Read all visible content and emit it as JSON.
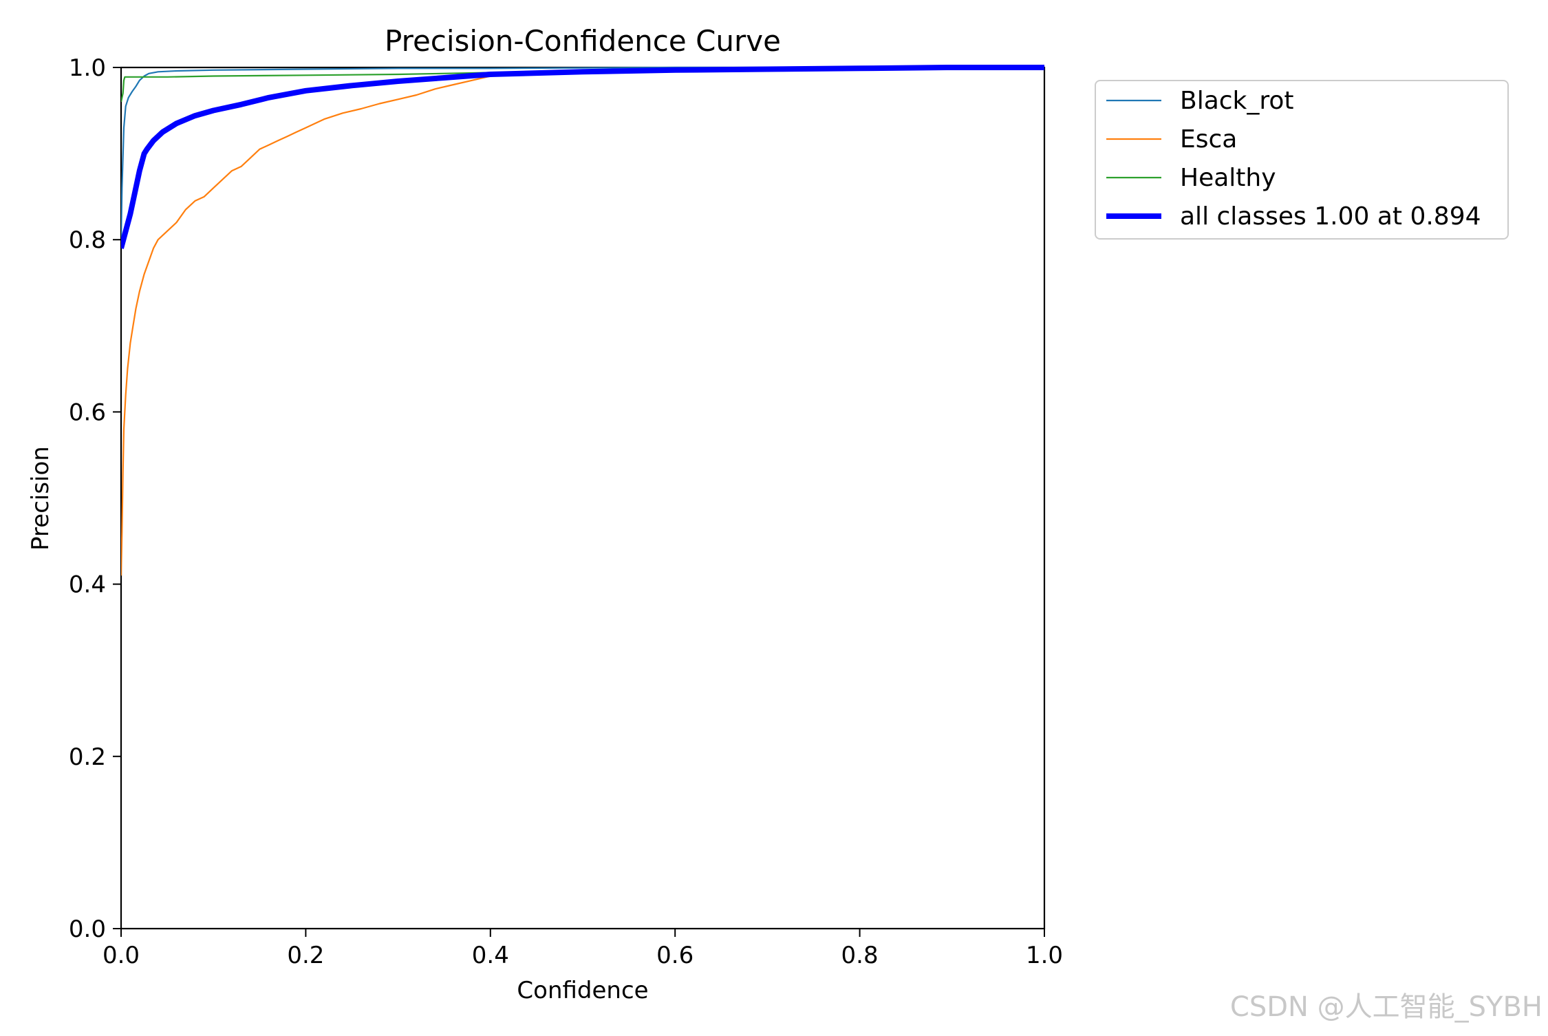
{
  "watermark": "CSDN @人工智能_SYBH",
  "chart_data": {
    "type": "line",
    "title": "Precision-Confidence Curve",
    "xlabel": "Confidence",
    "ylabel": "Precision",
    "xlim": [
      0.0,
      1.0
    ],
    "ylim": [
      0.0,
      1.0
    ],
    "grid": false,
    "legend_position": "outside-top-right",
    "xticks": [
      "0.0",
      "0.2",
      "0.4",
      "0.6",
      "0.8",
      "1.0"
    ],
    "yticks": [
      "0.0",
      "0.2",
      "0.4",
      "0.6",
      "0.8",
      "1.0"
    ],
    "xtick_values": [
      0.0,
      0.2,
      0.4,
      0.6,
      0.8,
      1.0
    ],
    "ytick_values": [
      0.0,
      0.2,
      0.4,
      0.6,
      0.8,
      1.0
    ],
    "series": [
      {
        "name": "Black_rot",
        "color": "#1f77b4",
        "bold": false,
        "x": [
          0.0,
          0.001,
          0.003,
          0.005,
          0.008,
          0.012,
          0.016,
          0.02,
          0.025,
          0.03,
          0.04,
          0.06,
          0.1,
          0.2,
          0.3,
          0.4,
          0.6,
          0.8,
          1.0
        ],
        "y": [
          0.8,
          0.86,
          0.93,
          0.955,
          0.965,
          0.972,
          0.978,
          0.985,
          0.99,
          0.993,
          0.995,
          0.996,
          0.997,
          0.998,
          0.999,
          0.999,
          1.0,
          1.0,
          1.0
        ]
      },
      {
        "name": "Esca",
        "color": "#ff7f0e",
        "bold": false,
        "x": [
          0.0,
          0.001,
          0.002,
          0.003,
          0.005,
          0.007,
          0.01,
          0.013,
          0.016,
          0.02,
          0.025,
          0.03,
          0.035,
          0.04,
          0.05,
          0.06,
          0.07,
          0.08,
          0.09,
          0.1,
          0.11,
          0.12,
          0.13,
          0.14,
          0.15,
          0.16,
          0.17,
          0.18,
          0.19,
          0.2,
          0.22,
          0.24,
          0.26,
          0.28,
          0.3,
          0.32,
          0.34,
          0.36,
          0.38,
          0.4,
          0.45,
          0.5,
          0.6,
          0.7,
          0.78,
          0.8,
          1.0
        ],
        "y": [
          0.41,
          0.46,
          0.53,
          0.58,
          0.62,
          0.65,
          0.68,
          0.7,
          0.72,
          0.74,
          0.76,
          0.775,
          0.79,
          0.8,
          0.81,
          0.82,
          0.835,
          0.845,
          0.85,
          0.86,
          0.87,
          0.88,
          0.885,
          0.895,
          0.905,
          0.91,
          0.915,
          0.92,
          0.925,
          0.93,
          0.94,
          0.947,
          0.952,
          0.958,
          0.963,
          0.968,
          0.975,
          0.98,
          0.985,
          0.99,
          0.993,
          0.995,
          0.997,
          0.998,
          0.998,
          1.0,
          1.0
        ]
      },
      {
        "name": "Healthy",
        "color": "#2ca02c",
        "bold": false,
        "x": [
          0.0,
          0.002,
          0.003,
          0.004,
          0.01,
          0.05,
          0.1,
          0.2,
          0.3,
          0.4,
          0.5,
          0.6,
          0.8,
          1.0
        ],
        "y": [
          0.96,
          0.97,
          0.985,
          0.989,
          0.989,
          0.989,
          0.99,
          0.991,
          0.992,
          0.994,
          0.996,
          0.998,
          1.0,
          1.0
        ]
      },
      {
        "name": "all classes 1.00 at 0.894",
        "color": "#0000ff",
        "bold": true,
        "x": [
          0.0,
          0.005,
          0.01,
          0.015,
          0.02,
          0.025,
          0.028,
          0.035,
          0.045,
          0.06,
          0.08,
          0.1,
          0.13,
          0.16,
          0.2,
          0.25,
          0.3,
          0.35,
          0.4,
          0.5,
          0.6,
          0.7,
          0.8,
          0.894,
          1.0
        ],
        "y": [
          0.79,
          0.81,
          0.83,
          0.855,
          0.88,
          0.9,
          0.905,
          0.915,
          0.925,
          0.935,
          0.944,
          0.95,
          0.957,
          0.965,
          0.973,
          0.979,
          0.984,
          0.988,
          0.992,
          0.995,
          0.997,
          0.998,
          0.999,
          1.0,
          1.0
        ]
      }
    ]
  }
}
